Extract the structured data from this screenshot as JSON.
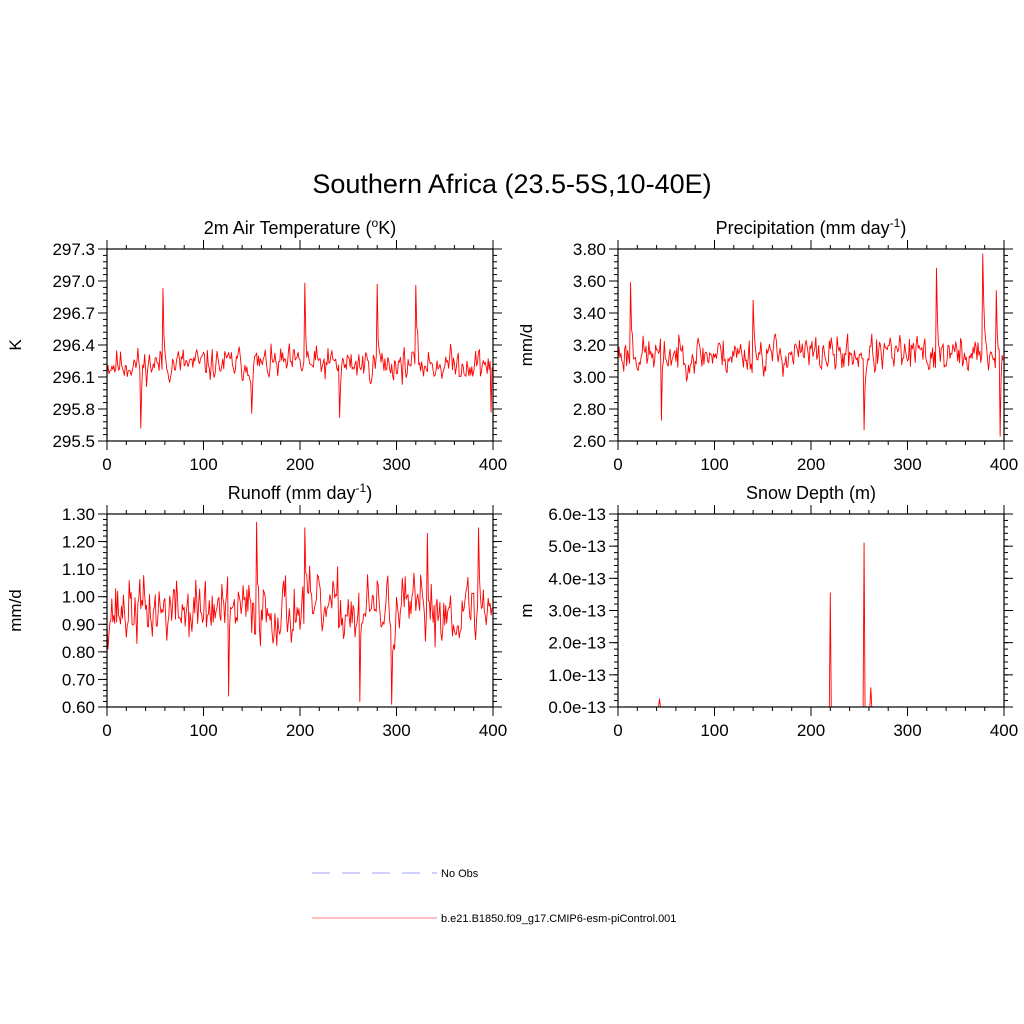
{
  "figure": {
    "title": "Southern Africa (23.5-5S,10-40E)"
  },
  "legend": {
    "items": [
      {
        "label": "No Obs",
        "style": "dashed",
        "color": "#b3b3ff"
      },
      {
        "label": "b.e21.B1850.f09_g17.CMIP6-esm-piControl.001",
        "style": "solid",
        "color": "#ff9999"
      }
    ]
  },
  "chart_data": [
    {
      "id": "temp",
      "type": "line",
      "title": "2m Air Temperature (",
      "title_sup": "o",
      "title_tail": "K)",
      "ylabel": "K",
      "xlim": [
        0,
        400
      ],
      "ylim": [
        295.5,
        297.3
      ],
      "xticks": [
        0,
        100,
        200,
        300,
        400
      ],
      "yticks": [
        295.5,
        295.8,
        296.1,
        296.4,
        296.7,
        297.0,
        297.3
      ],
      "ytick_labels": [
        "295.5",
        "295.8",
        "296.1",
        "296.4",
        "296.7",
        "297.0",
        "297.3"
      ],
      "series_color": "#ff0000",
      "series": {
        "name": "b.e21.B1850.f09_g17.CMIP6-esm-piControl.001",
        "n": 400,
        "start": 0,
        "mean": 296.22,
        "amp": 0.17,
        "seed": 11,
        "min": 295.62,
        "max": 297.0,
        "spikes": [
          [
            35,
            295.62
          ],
          [
            58,
            296.93
          ],
          [
            150,
            295.76
          ],
          [
            205,
            296.98
          ],
          [
            241,
            295.72
          ],
          [
            280,
            296.97
          ],
          [
            320,
            296.96
          ],
          [
            398,
            295.77
          ]
        ]
      }
    },
    {
      "id": "precip",
      "type": "line",
      "title": "Precipitation (mm day",
      "title_sup": "-1",
      "title_tail": ")",
      "ylabel": "mm/d",
      "xlim": [
        0,
        400
      ],
      "ylim": [
        2.6,
        3.8
      ],
      "xticks": [
        0,
        100,
        200,
        300,
        400
      ],
      "yticks": [
        2.6,
        2.8,
        3.0,
        3.2,
        3.4,
        3.6,
        3.8
      ],
      "ytick_labels": [
        "2.60",
        "2.80",
        "3.00",
        "3.20",
        "3.40",
        "3.60",
        "3.80"
      ],
      "series_color": "#ff0000",
      "series": {
        "name": "b.e21.B1850.f09_g17.CMIP6-esm-piControl.001",
        "n": 400,
        "start": 0,
        "mean": 3.14,
        "amp": 0.13,
        "seed": 23,
        "min": 2.63,
        "max": 3.77,
        "spikes": [
          [
            13,
            3.59
          ],
          [
            45,
            2.73
          ],
          [
            140,
            3.48
          ],
          [
            255,
            2.67
          ],
          [
            330,
            3.68
          ],
          [
            378,
            3.77
          ],
          [
            392,
            3.54
          ],
          [
            396,
            2.63
          ]
        ]
      }
    },
    {
      "id": "runoff",
      "type": "line",
      "title": "Runoff (mm day",
      "title_sup": "-1",
      "title_tail": ")",
      "ylabel": "mm/d",
      "xlim": [
        0,
        400
      ],
      "ylim": [
        0.6,
        1.3
      ],
      "xticks": [
        0,
        100,
        200,
        300,
        400
      ],
      "yticks": [
        0.6,
        0.7,
        0.8,
        0.9,
        1.0,
        1.1,
        1.2,
        1.3
      ],
      "ytick_labels": [
        "0.60",
        "0.70",
        "0.80",
        "0.90",
        "1.00",
        "1.10",
        "1.20",
        "1.30"
      ],
      "series_color": "#ff0000",
      "series": {
        "name": "b.e21.B1850.f09_g17.CMIP6-esm-piControl.001",
        "n": 400,
        "start": 0,
        "mean": 0.95,
        "amp": 0.13,
        "seed": 37,
        "min": 0.61,
        "max": 1.27,
        "spikes": [
          [
            126,
            0.64
          ],
          [
            155,
            1.27
          ],
          [
            205,
            1.25
          ],
          [
            262,
            0.62
          ],
          [
            295,
            0.61
          ],
          [
            332,
            1.23
          ],
          [
            385,
            1.25
          ]
        ]
      }
    },
    {
      "id": "snow",
      "type": "line",
      "title": "Snow Depth (m)",
      "title_sup": "",
      "title_tail": "",
      "ylabel": "m",
      "xlim": [
        0,
        400
      ],
      "ylim": [
        0,
        6e-13
      ],
      "xticks": [
        0,
        100,
        200,
        300,
        400
      ],
      "yticks": [
        0,
        1e-13,
        2e-13,
        3e-13,
        4e-13,
        5e-13,
        6e-13
      ],
      "ytick_labels": [
        "0.0e-13",
        "1.0e-13",
        "2.0e-13",
        "3.0e-13",
        "4.0e-13",
        "5.0e-13",
        "6.0e-13"
      ],
      "series_color": "#ff0000",
      "series": {
        "name": "b.e21.B1850.f09_g17.CMIP6-esm-piControl.001",
        "n": 400,
        "start": 0,
        "mean": 0,
        "amp": 0,
        "seed": 0,
        "spikes": [
          [
            43,
            2.5e-14
          ],
          [
            220,
            3.55e-13
          ],
          [
            255,
            5.1e-13
          ],
          [
            262,
            6e-14
          ]
        ]
      }
    }
  ]
}
